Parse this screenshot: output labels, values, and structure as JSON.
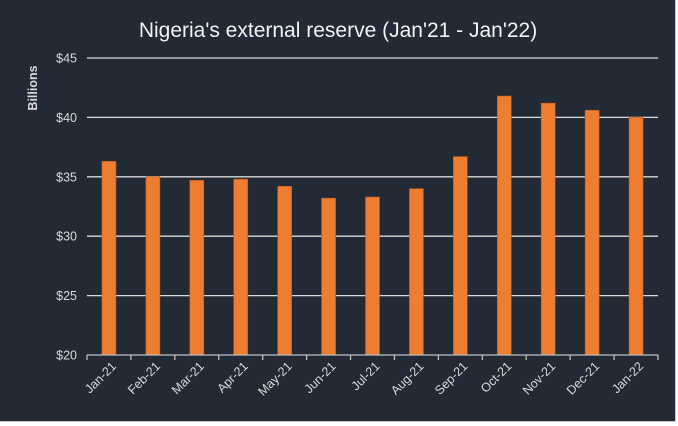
{
  "chart_data": {
    "type": "bar",
    "title": "Nigeria's external reserve (Jan'21 - Jan'22)",
    "xlabel": "",
    "ylabel": "Billions",
    "categories": [
      "Jan-21",
      "Feb-21",
      "Mar-21",
      "Apr-21",
      "May-21",
      "Jun-21",
      "Jul-21",
      "Aug-21",
      "Sep-21",
      "Oct-21",
      "Nov-21",
      "Dec-21",
      "Jan-22"
    ],
    "values": [
      36.3,
      35.0,
      34.7,
      34.8,
      34.2,
      33.2,
      33.3,
      34.0,
      36.7,
      41.8,
      41.2,
      40.6,
      40.0
    ],
    "ylim": [
      20,
      45
    ],
    "yticks": [
      20,
      25,
      30,
      35,
      40,
      45
    ],
    "ytick_labels": [
      "$20",
      "$25",
      "$30",
      "$35",
      "$40",
      "$45"
    ],
    "grid": true,
    "legend": "none",
    "colors": {
      "bar": "#ed7d31",
      "background": "#222a35",
      "text": "#d9d9d9"
    }
  }
}
